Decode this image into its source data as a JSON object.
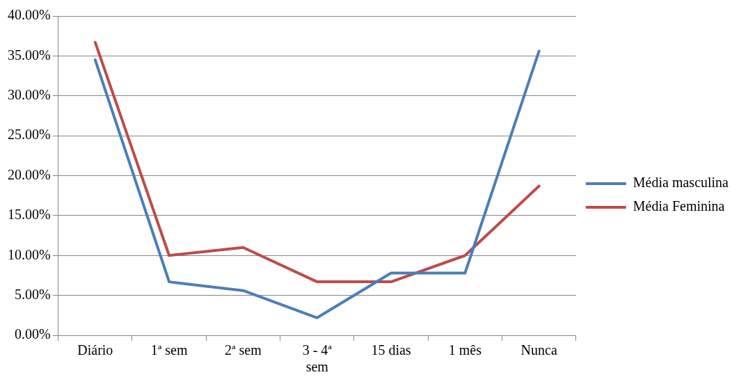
{
  "chart_data": {
    "type": "line",
    "categories": [
      "Diário",
      "1ª sem",
      "2ª sem",
      "3 - 4ª sem",
      "15 dias",
      "1 mês",
      "Nunca"
    ],
    "series": [
      {
        "name": "Média masculina",
        "color": "#4a7ebb",
        "values": [
          34.5,
          6.7,
          5.6,
          2.2,
          7.8,
          7.8,
          35.6
        ]
      },
      {
        "name": "Média Feminina",
        "color": "#be4b48",
        "values": [
          36.7,
          10.0,
          11.0,
          6.7,
          6.7,
          10.0,
          18.7
        ]
      }
    ],
    "ylim": [
      0,
      40
    ],
    "yticks": [
      {
        "value": 0,
        "label": "0.00%"
      },
      {
        "value": 5,
        "label": "5.00%"
      },
      {
        "value": 10,
        "label": "10.00%"
      },
      {
        "value": 15,
        "label": "15.00%"
      },
      {
        "value": 20,
        "label": "20.00%"
      },
      {
        "value": 25,
        "label": "25.00%"
      },
      {
        "value": 30,
        "label": "30.00%"
      },
      {
        "value": 35,
        "label": "35.00%"
      },
      {
        "value": 40,
        "label": "40.00%"
      }
    ],
    "grid": "y",
    "legend": "right",
    "marker": "none",
    "line_style": "solid"
  }
}
